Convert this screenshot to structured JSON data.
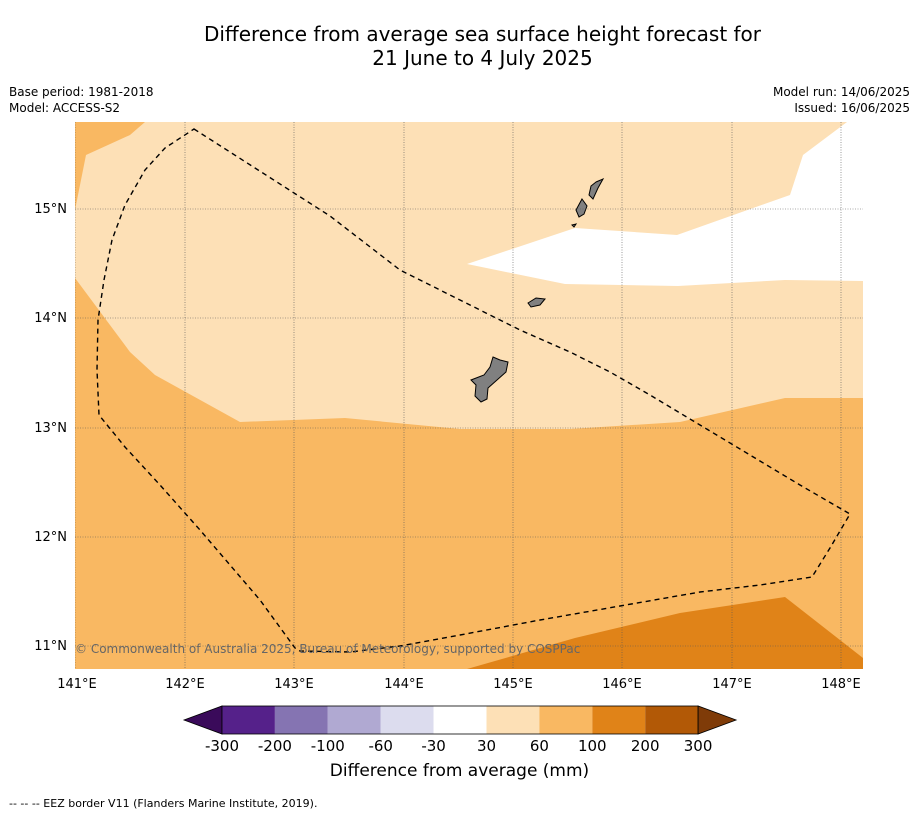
{
  "title_line1": "Difference from average sea surface height forecast for",
  "title_line2": "21 June to 4 July 2025",
  "base_period": "Base period: 1981-2018",
  "model": "Model: ACCESS-S2",
  "model_run": "Model run: 14/06/2025",
  "issued": "Issued: 16/06/2025",
  "copyright": "© Commonwealth of Australia 2025, Bureau of Meteorology, supported by COSPPac",
  "lon_labels": [
    "141°E",
    "142°E",
    "143°E",
    "144°E",
    "145°E",
    "146°E",
    "147°E",
    "148°E"
  ],
  "lat_labels": [
    "15°N",
    "14°N",
    "13°N",
    "12°N",
    "11°N"
  ],
  "colorbar": {
    "ticks": [
      "-300",
      "-200",
      "-100",
      "-60",
      "-30",
      "30",
      "60",
      "100",
      "200",
      "300"
    ],
    "colors": [
      "#55218a",
      "#8574b2",
      "#b0a9d2",
      "#dcdcee",
      "#ffffff",
      "#fde0b6",
      "#f9b862",
      "#e08318",
      "#b25906"
    ],
    "under_color": "#3a0a5a",
    "over_color": "#7f3b08",
    "label": "Difference from average (mm)"
  },
  "legend_note": "-- -- -- EEZ border V11 (Flanders Marine Institute, 2019).",
  "map_colors": {
    "class_30_60": "#fde0b6",
    "class_60_100": "#f9b862",
    "class_100_200": "#e08318",
    "land": "#808080"
  }
}
